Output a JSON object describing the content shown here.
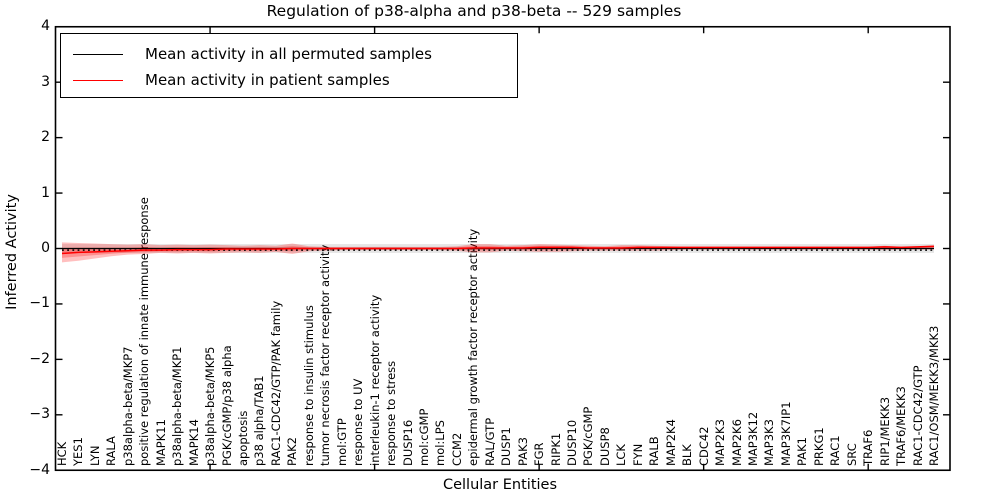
{
  "chart_data": {
    "type": "line",
    "title": "Regulation of p38-alpha and p38-beta -- 529 samples",
    "xlabel": "Cellular Entities",
    "ylabel": "Inferred Activity",
    "ylim": [
      -4,
      4
    ],
    "yticks": [
      4,
      3,
      2,
      1,
      0,
      -1,
      -2,
      -3,
      -4
    ],
    "grid": false,
    "legend_position": "upper left",
    "categories": [
      "HCK",
      "YES1",
      "LYN",
      "RALA",
      "p38alpha-beta/MKP7",
      "positive regulation of innate immune response",
      "MAPK11",
      "p38alpha-beta/MKP1",
      "MAPK14",
      "p38alpha-beta/MKP5",
      "PGK/cGMP/p38 alpha",
      "apoptosis",
      "p38 alpha/TAB1",
      "RAC1-CDC42/GTP/PAK family",
      "PAK2",
      "response to insulin stimulus",
      "tumor necrosis factor receptor activity",
      "mol:GTP",
      "response to UV",
      "interleukin-1 receptor activity",
      "response to stress",
      "DUSP16",
      "mol:cGMP",
      "mol:LPS",
      "CCM2",
      "epidermal growth factor receptor activity",
      "RAL/GTP",
      "DUSP1",
      "PAK3",
      "FGR",
      "RIPK1",
      "DUSP10",
      "PGK/cGMP",
      "DUSP8",
      "LCK",
      "FYN",
      "RALB",
      "MAP2K4",
      "BLK",
      "CDC42",
      "MAP2K3",
      "MAP2K6",
      "MAP3K12",
      "MAP3K3",
      "MAP3K7IP1",
      "PAK1",
      "PRKG1",
      "RAC1",
      "SRC",
      "TRAF6",
      "RIP1/MEKK3",
      "TRAF6/MEKK3",
      "RAC1-CDC42/GTP",
      "RAC1/OSM/MEKK3/MKK3"
    ],
    "series": [
      {
        "name": "Mean activity in all permuted samples",
        "color": "#000000",
        "line_style": "solid with dotted zero reference",
        "values_constant": 0,
        "band": {
          "upper_constant": 0.08,
          "lower_constant": -0.08,
          "color": "#000000",
          "alpha": 0.1
        }
      },
      {
        "name": "Mean activity in patient samples",
        "color": "#ff0000",
        "values": [
          -0.09,
          -0.07,
          -0.06,
          -0.05,
          -0.04,
          -0.03,
          -0.03,
          -0.02,
          -0.02,
          -0.02,
          -0.01,
          -0.01,
          -0.01,
          -0.01,
          0.0,
          0.0,
          0.0,
          0.0,
          0.0,
          0.0,
          0.0,
          0.0,
          0.0,
          0.0,
          0.0,
          0.01,
          0.01,
          0.01,
          0.01,
          0.02,
          0.02,
          0.02,
          0.01,
          0.01,
          0.01,
          0.02,
          0.02,
          0.02,
          0.02,
          0.02,
          0.02,
          0.02,
          0.02,
          0.02,
          0.02,
          0.02,
          0.02,
          0.02,
          0.02,
          0.02,
          0.03,
          0.02,
          0.03,
          0.04
        ],
        "band": {
          "color": "#ff0000",
          "alpha": 0.25,
          "upper": [
            0.11,
            0.1,
            0.09,
            0.08,
            0.07,
            0.08,
            0.06,
            0.07,
            0.06,
            0.07,
            0.06,
            0.05,
            0.06,
            0.05,
            0.09,
            0.04,
            0.03,
            0.03,
            0.03,
            0.03,
            0.03,
            0.03,
            0.03,
            0.03,
            0.04,
            0.08,
            0.08,
            0.05,
            0.06,
            0.08,
            0.07,
            0.06,
            0.05,
            0.04,
            0.06,
            0.06,
            0.05,
            0.04,
            0.03,
            0.03,
            0.03,
            0.03,
            0.03,
            0.03,
            0.03,
            0.03,
            0.03,
            0.03,
            0.03,
            0.03,
            0.05,
            0.03,
            0.04,
            0.05
          ],
          "lower": [
            -0.25,
            -0.22,
            -0.18,
            -0.14,
            -0.11,
            -0.1,
            -0.08,
            -0.09,
            -0.08,
            -0.09,
            -0.08,
            -0.07,
            -0.08,
            -0.06,
            -0.1,
            -0.05,
            -0.04,
            -0.03,
            -0.03,
            -0.03,
            -0.03,
            -0.03,
            -0.03,
            -0.03,
            -0.04,
            -0.07,
            -0.07,
            -0.04,
            -0.05,
            -0.06,
            -0.06,
            -0.05,
            -0.04,
            -0.04,
            -0.04,
            -0.04,
            -0.04,
            -0.03,
            -0.02,
            -0.02,
            -0.02,
            -0.02,
            -0.02,
            -0.02,
            -0.02,
            -0.02,
            -0.02,
            -0.02,
            -0.02,
            -0.02,
            -0.03,
            -0.02,
            -0.02,
            -0.02
          ]
        }
      }
    ]
  }
}
